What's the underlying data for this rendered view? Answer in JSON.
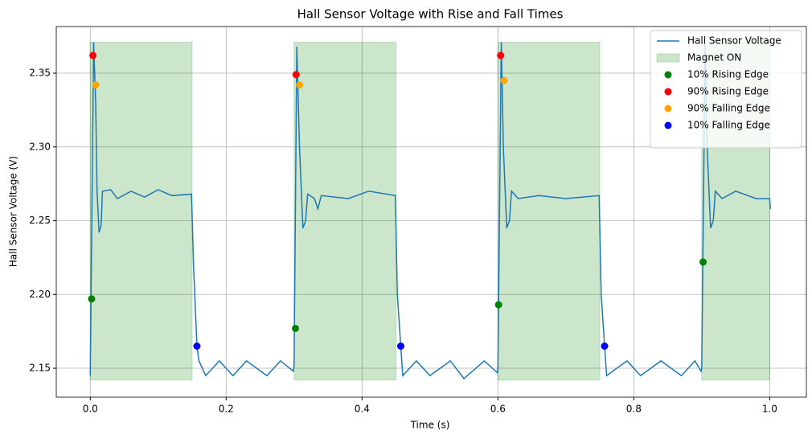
{
  "chart_data": {
    "type": "line",
    "title": "Hall Sensor Voltage with Rise and Fall Times",
    "x_label": "Time (s)",
    "y_label": "Hall Sensor Voltage (V)",
    "xlim": [
      -0.05,
      1.054
    ],
    "ylim": [
      2.1304,
      2.3816
    ],
    "xticks": [
      {
        "value": 0,
        "label": "0.0"
      },
      0.2,
      0.4,
      0.6,
      0.8,
      {
        "value": 1,
        "label": "1.0"
      }
    ],
    "yticks": [
      2.15,
      {
        "value": 2.2,
        "label": "2.20"
      },
      2.25,
      {
        "value": 2.3,
        "label": "2.30"
      },
      2.35
    ],
    "grid": true,
    "legend": "upper right",
    "series": [
      {
        "name": "Hall Sensor Voltage",
        "kind": "line",
        "color": "#1f77b4",
        "x": [
          0,
          0.005,
          0.008,
          0.01,
          0.013,
          0.016,
          0.018,
          0.03,
          0.04,
          0.06,
          0.08,
          0.1,
          0.12,
          0.149,
          0.152,
          0.157,
          0.16,
          0.17,
          0.19,
          0.21,
          0.23,
          0.26,
          0.28,
          0.299,
          0.3,
          0.304,
          0.308,
          0.313,
          0.317,
          0.32,
          0.33,
          0.335,
          0.34,
          0.38,
          0.41,
          0.449,
          0.452,
          0.457,
          0.46,
          0.48,
          0.5,
          0.53,
          0.55,
          0.58,
          0.599,
          0.6,
          0.605,
          0.608,
          0.613,
          0.617,
          0.62,
          0.63,
          0.66,
          0.7,
          0.749,
          0.752,
          0.757,
          0.76,
          0.79,
          0.81,
          0.84,
          0.87,
          0.89,
          0.899,
          0.9,
          0.905,
          0.908,
          0.913,
          0.917,
          0.92,
          0.93,
          0.95,
          0.98,
          1.0,
          1.001
        ],
        "values": [
          2.145,
          2.371,
          2.33,
          2.27,
          2.242,
          2.247,
          2.27,
          2.271,
          2.265,
          2.27,
          2.266,
          2.271,
          2.267,
          2.268,
          2.22,
          2.165,
          2.155,
          2.145,
          2.155,
          2.145,
          2.155,
          2.145,
          2.155,
          2.148,
          2.152,
          2.368,
          2.3,
          2.245,
          2.25,
          2.268,
          2.265,
          2.258,
          2.267,
          2.265,
          2.27,
          2.267,
          2.2,
          2.165,
          2.145,
          2.155,
          2.145,
          2.155,
          2.143,
          2.155,
          2.147,
          2.15,
          2.371,
          2.3,
          2.245,
          2.25,
          2.27,
          2.265,
          2.267,
          2.265,
          2.267,
          2.2,
          2.165,
          2.145,
          2.155,
          2.145,
          2.155,
          2.145,
          2.155,
          2.148,
          2.15,
          2.37,
          2.3,
          2.245,
          2.25,
          2.27,
          2.265,
          2.27,
          2.265,
          2.265,
          2.258
        ]
      },
      {
        "name": "Magnet ON",
        "kind": "span",
        "color": "#008000",
        "x0": [
          0,
          0.3,
          0.6,
          0.9
        ],
        "x1": [
          0.15,
          0.45,
          0.75,
          1.0
        ],
        "y0": 2.142,
        "y1": 2.371
      },
      {
        "name": "10% Rising Edge",
        "kind": "scatter",
        "color": "green",
        "x": [
          0.002,
          0.302,
          0.601,
          0.902
        ],
        "values": [
          2.197,
          2.177,
          2.193,
          2.222
        ]
      },
      {
        "name": "90% Rising Edge",
        "kind": "scatter",
        "color": "red",
        "x": [
          0.004,
          0.303,
          0.604
        ],
        "values": [
          2.362,
          2.349,
          2.362
        ]
      },
      {
        "name": "90% Falling Edge",
        "kind": "scatter",
        "color": "orange",
        "x": [
          0.008,
          0.308,
          0.609
        ],
        "values": [
          2.342,
          2.342,
          2.345
        ]
      },
      {
        "name": "10% Falling Edge",
        "kind": "scatter",
        "color": "blue",
        "x": [
          0.157,
          0.457,
          0.757
        ],
        "values": [
          2.165,
          2.165,
          2.165
        ]
      }
    ]
  }
}
